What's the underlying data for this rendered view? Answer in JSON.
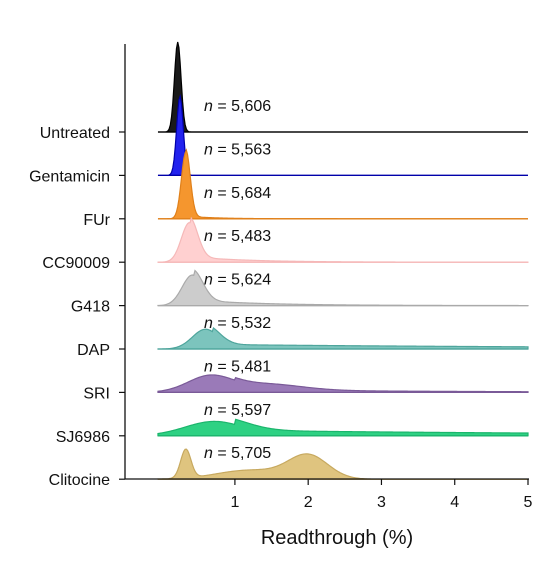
{
  "chart_data": {
    "type": "ridgeline",
    "xlabel": "Readthrough (%)",
    "xlim": [
      -0.5,
      5
    ],
    "xticks": [
      1,
      2,
      3,
      4,
      5
    ],
    "grid": false,
    "legend": "none",
    "series": [
      {
        "name": "Untreated",
        "n_label": "n = 5,606",
        "color": "#1a1a1a",
        "line_color": "#000000",
        "peaks": [
          {
            "x": 0.22,
            "w": 0.045,
            "h": 1.0
          }
        ],
        "tail": {
          "x0": 0.22,
          "decay": 0.5,
          "amp": 0.0
        }
      },
      {
        "name": "Gentamicin",
        "n_label": "n = 5,563",
        "color": "#2222ee",
        "line_color": "#0000aa",
        "peaks": [
          {
            "x": 0.25,
            "w": 0.045,
            "h": 0.88
          }
        ],
        "tail": {
          "x0": 0.25,
          "decay": 0.5,
          "amp": 0.0
        }
      },
      {
        "name": "FUr",
        "n_label": "n = 5,684",
        "color": "#f5962e",
        "line_color": "#e0801a",
        "peaks": [
          {
            "x": 0.33,
            "w": 0.06,
            "h": 0.74
          }
        ],
        "tail": {
          "x0": 0.33,
          "decay": 0.4,
          "amp": 0.03
        }
      },
      {
        "name": "CC90009",
        "n_label": "n = 5,483",
        "color": "#ffd0d0",
        "line_color": "#f5b8b8",
        "peaks": [
          {
            "x": 0.38,
            "w": 0.11,
            "h": 0.44
          }
        ],
        "tail": {
          "x0": 0.4,
          "decay": 0.8,
          "amp": 0.06
        }
      },
      {
        "name": "G418",
        "n_label": "n = 5,624",
        "color": "#cccccc",
        "line_color": "#aaaaaa",
        "peaks": [
          {
            "x": 0.42,
            "w": 0.14,
            "h": 0.34
          }
        ],
        "tail": {
          "x0": 0.45,
          "decay": 1.0,
          "amp": 0.06
        }
      },
      {
        "name": "DAP",
        "n_label": "n = 5,532",
        "color": "#7cc4bd",
        "line_color": "#4ea59c",
        "peaks": [
          {
            "x": 0.6,
            "w": 0.18,
            "h": 0.22
          }
        ],
        "tail": {
          "x0": 0.7,
          "decay": 6.0,
          "amp": 0.05
        }
      },
      {
        "name": "SRI",
        "n_label": "n = 5,481",
        "color": "#9a7ab8",
        "line_color": "#7a5a98",
        "peaks": [
          {
            "x": 0.65,
            "w": 0.3,
            "h": 0.17
          },
          {
            "x": 1.4,
            "w": 0.5,
            "h": 0.07
          }
        ],
        "tail": {
          "x0": 1.0,
          "decay": 3.0,
          "amp": 0.03
        }
      },
      {
        "name": "SJ6986",
        "n_label": "n = 5,597",
        "color": "#2ed183",
        "line_color": "#1bb56c",
        "peaks": [
          {
            "x": 0.72,
            "w": 0.4,
            "h": 0.16
          }
        ],
        "tail": {
          "x0": 1.0,
          "decay": 6.0,
          "amp": 0.06
        }
      },
      {
        "name": "Clitocine",
        "n_label": "n = 5,705",
        "color": "#dfc47f",
        "line_color": "#c7a95f",
        "peaks": [
          {
            "x": 0.33,
            "w": 0.07,
            "h": 0.32
          },
          {
            "x": 2.0,
            "w": 0.27,
            "h": 0.26
          },
          {
            "x": 1.2,
            "w": 0.45,
            "h": 0.1
          }
        ],
        "tail": {
          "x0": 2.2,
          "decay": 0.4,
          "amp": 0.0
        }
      }
    ]
  }
}
